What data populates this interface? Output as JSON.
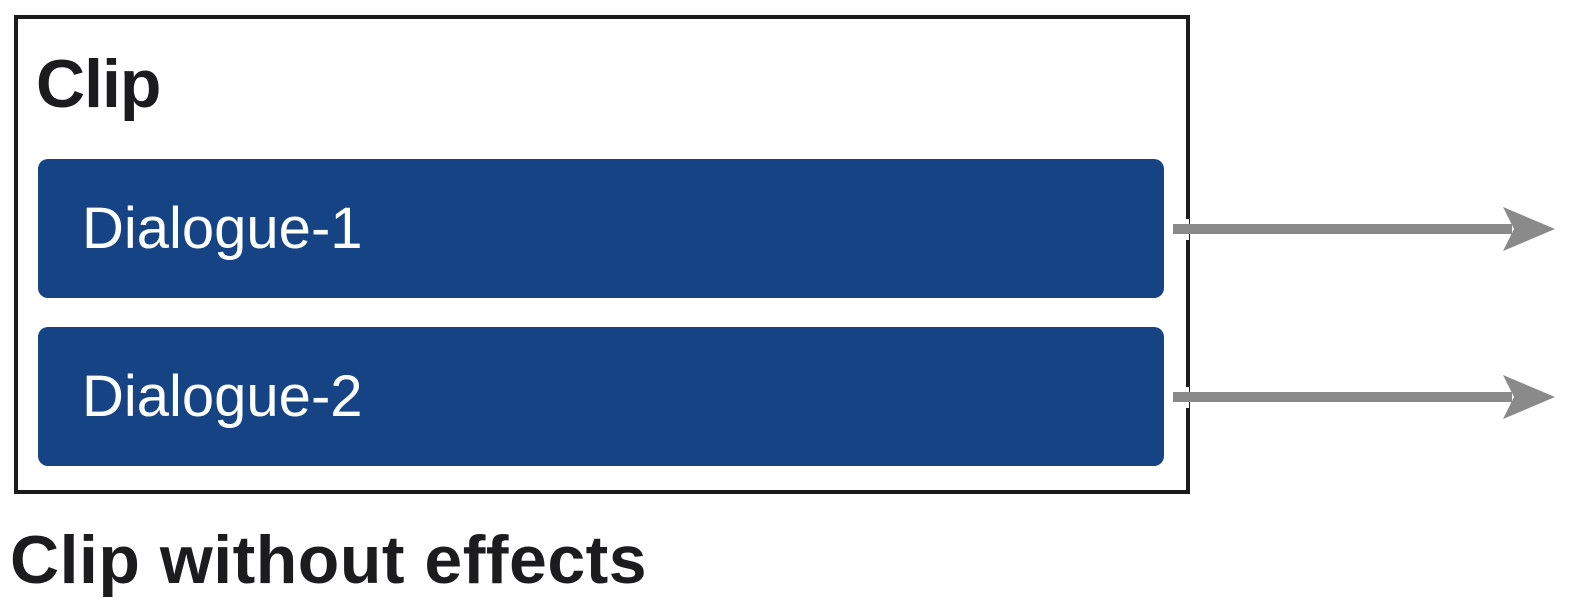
{
  "clip": {
    "title": "Clip"
  },
  "tracks": [
    {
      "label": "Dialogue-1"
    },
    {
      "label": "Dialogue-2"
    }
  ],
  "caption": "Clip without effects",
  "colors": {
    "track_fill": "#164383",
    "text_dark": "#1c1c1e",
    "arrow": "#8a8a8a",
    "border": "#1c1c1e"
  },
  "icons": {
    "output_arrow": "arrow-right-icon"
  }
}
